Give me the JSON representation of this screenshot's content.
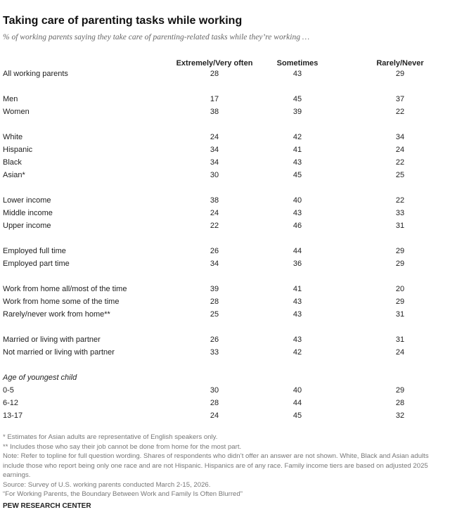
{
  "header": {
    "title": "Taking care of parenting tasks while working",
    "subtitle": "% of working parents saying they take care of parenting-related tasks while they’re working …"
  },
  "table": {
    "columns": [
      "Extremely/Very often",
      "Sometimes",
      "Rarely/Never"
    ],
    "groups": [
      {
        "rows": [
          {
            "label": "All working parents",
            "values": [
              28,
              43,
              29
            ]
          }
        ]
      },
      {
        "rows": [
          {
            "label": "Men",
            "values": [
              17,
              45,
              37
            ]
          },
          {
            "label": "Women",
            "values": [
              38,
              39,
              22
            ]
          }
        ]
      },
      {
        "rows": [
          {
            "label": "White",
            "values": [
              24,
              42,
              34
            ]
          },
          {
            "label": "Hispanic",
            "values": [
              34,
              41,
              24
            ]
          },
          {
            "label": "Black",
            "values": [
              34,
              43,
              22
            ]
          },
          {
            "label": "Asian*",
            "values": [
              30,
              45,
              25
            ]
          }
        ]
      },
      {
        "rows": [
          {
            "label": "Lower income",
            "values": [
              38,
              40,
              22
            ]
          },
          {
            "label": "Middle income",
            "values": [
              24,
              43,
              33
            ]
          },
          {
            "label": "Upper income",
            "values": [
              22,
              46,
              31
            ]
          }
        ]
      },
      {
        "rows": [
          {
            "label": "Employed full time",
            "values": [
              26,
              44,
              29
            ]
          },
          {
            "label": "Employed part time",
            "values": [
              34,
              36,
              29
            ]
          }
        ]
      },
      {
        "rows": [
          {
            "label": "Work from home all/most of the time",
            "values": [
              39,
              41,
              20
            ]
          },
          {
            "label": "Work from home some of the time",
            "values": [
              28,
              43,
              29
            ]
          },
          {
            "label": "Rarely/never work from home**",
            "values": [
              25,
              43,
              31
            ]
          }
        ]
      },
      {
        "rows": [
          {
            "label": "Married or living with partner",
            "values": [
              26,
              43,
              31
            ]
          },
          {
            "label": "Not married or living with partner",
            "values": [
              33,
              42,
              24
            ]
          }
        ]
      },
      {
        "label": "Age of youngest child",
        "rows": [
          {
            "label": "0-5",
            "values": [
              30,
              40,
              29
            ]
          },
          {
            "label": "6-12",
            "values": [
              28,
              44,
              28
            ]
          },
          {
            "label": "13-17",
            "values": [
              24,
              45,
              32
            ]
          }
        ]
      }
    ]
  },
  "footer": {
    "notes": [
      "* Estimates for Asian adults are representative of English speakers only.",
      "** Includes those who say their job cannot be done from home for the most part.",
      "Note: Refer to topline for full question wording. Shares of respondents who didn’t offer an answer are not shown. White, Black and Asian adults include those who report being only one race and are not Hispanic. Hispanics are of any race. Family income tiers are based on adjusted 2025 earnings.",
      "Source: Survey of U.S. working parents conducted March 2-15, 2026.",
      "“For Working Parents, the Boundary Between Work and Family Is Often Blurred”"
    ],
    "logo": "PEW RESEARCH CENTER"
  }
}
